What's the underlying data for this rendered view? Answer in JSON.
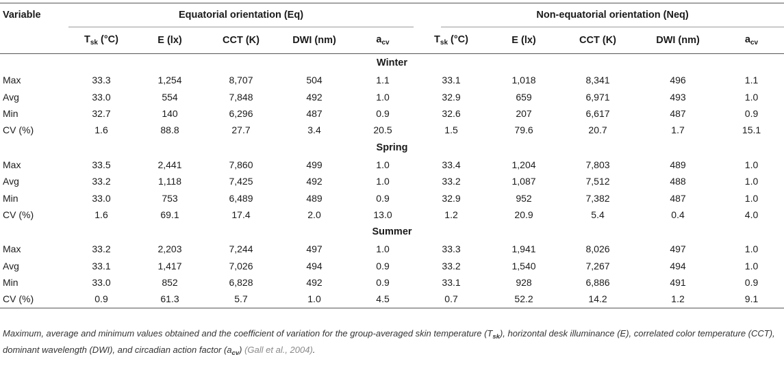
{
  "header": {
    "variable_label": "Variable",
    "group_eq": "Equatorial orientation (Eq)",
    "group_neq": "Non-equatorial orientation (Neq)",
    "col_tsk_main": "T",
    "col_tsk_sub": "sk",
    "col_tsk_unit": " (°C)",
    "col_e": "E (lx)",
    "col_cct": "CCT (K)",
    "col_dwi": "DWI (nm)",
    "col_acv_main": "a",
    "col_acv_sub": "cv"
  },
  "seasons": [
    {
      "name": "Winter",
      "rows": [
        {
          "label": "Max",
          "eq": [
            "33.3",
            "1,254",
            "8,707",
            "504",
            "1.1"
          ],
          "neq": [
            "33.1",
            "1,018",
            "8,341",
            "496",
            "1.1"
          ]
        },
        {
          "label": "Avg",
          "eq": [
            "33.0",
            "554",
            "7,848",
            "492",
            "1.0"
          ],
          "neq": [
            "32.9",
            "659",
            "6,971",
            "493",
            "1.0"
          ]
        },
        {
          "label": "Min",
          "eq": [
            "32.7",
            "140",
            "6,296",
            "487",
            "0.9"
          ],
          "neq": [
            "32.6",
            "207",
            "6,617",
            "487",
            "0.9"
          ]
        },
        {
          "label": "CV (%)",
          "eq": [
            "1.6",
            "88.8",
            "27.7",
            "3.4",
            "20.5"
          ],
          "neq": [
            "1.5",
            "79.6",
            "20.7",
            "1.7",
            "15.1"
          ]
        }
      ]
    },
    {
      "name": "Spring",
      "rows": [
        {
          "label": "Max",
          "eq": [
            "33.5",
            "2,441",
            "7,860",
            "499",
            "1.0"
          ],
          "neq": [
            "33.4",
            "1,204",
            "7,803",
            "489",
            "1.0"
          ]
        },
        {
          "label": "Avg",
          "eq": [
            "33.2",
            "1,118",
            "7,425",
            "492",
            "1.0"
          ],
          "neq": [
            "33.2",
            "1,087",
            "7,512",
            "488",
            "1.0"
          ]
        },
        {
          "label": "Min",
          "eq": [
            "33.0",
            "753",
            "6,489",
            "489",
            "0.9"
          ],
          "neq": [
            "32.9",
            "952",
            "7,382",
            "487",
            "1.0"
          ]
        },
        {
          "label": "CV (%)",
          "eq": [
            "1.6",
            "69.1",
            "17.4",
            "2.0",
            "13.0"
          ],
          "neq": [
            "1.2",
            "20.9",
            "5.4",
            "0.4",
            "4.0"
          ]
        }
      ]
    },
    {
      "name": "Summer",
      "rows": [
        {
          "label": "Max",
          "eq": [
            "33.2",
            "2,203",
            "7,244",
            "497",
            "1.0"
          ],
          "neq": [
            "33.3",
            "1,941",
            "8,026",
            "497",
            "1.0"
          ]
        },
        {
          "label": "Avg",
          "eq": [
            "33.1",
            "1,417",
            "7,026",
            "494",
            "0.9"
          ],
          "neq": [
            "33.2",
            "1,540",
            "7,267",
            "494",
            "1.0"
          ]
        },
        {
          "label": "Min",
          "eq": [
            "33.0",
            "852",
            "6,828",
            "492",
            "0.9"
          ],
          "neq": [
            "33.1",
            "928",
            "6,886",
            "491",
            "0.9"
          ]
        },
        {
          "label": "CV (%)",
          "eq": [
            "0.9",
            "61.3",
            "5.7",
            "1.0",
            "4.5"
          ],
          "neq": [
            "0.7",
            "52.2",
            "14.2",
            "1.2",
            "9.1"
          ]
        }
      ]
    }
  ],
  "caption": {
    "part1": "Maximum, average and minimum values obtained and the coefficient of variation for the group-averaged skin temperature (T",
    "sub1": "sk",
    "part2": "), horizontal desk illuminance (E), correlated color temperature (CCT), dominant wavelength (DWI), and circadian action factor (a",
    "sub2": "cv",
    "part3": ") ",
    "citation": "(Gall et al., 2004)",
    "end": "."
  }
}
